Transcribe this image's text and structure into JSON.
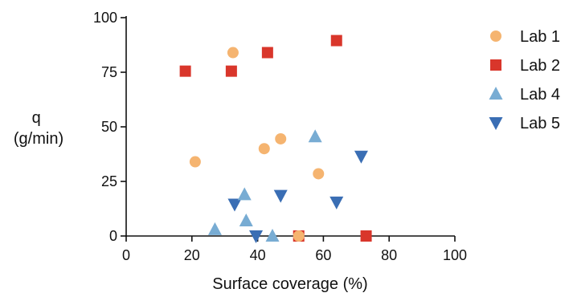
{
  "chart_data": {
    "type": "scatter",
    "xlabel": "Surface coverage (%)",
    "ylabel": [
      "q",
      "(g/min)"
    ],
    "xlim": [
      0,
      100
    ],
    "ylim": [
      0,
      100
    ],
    "xticks": [
      0,
      20,
      40,
      60,
      80,
      100
    ],
    "yticks": [
      0,
      25,
      50,
      75,
      100
    ],
    "grid": false,
    "legend_position": "right",
    "series": [
      {
        "name": "Lab 1",
        "marker": "circle",
        "color": "#F5B470",
        "x": [
          21,
          32.5,
          42,
          47,
          52.5,
          58.5
        ],
        "y": [
          34,
          84,
          40,
          44.5,
          0,
          28.5
        ]
      },
      {
        "name": "Lab 2",
        "marker": "square",
        "color": "#D9362B",
        "x": [
          18,
          32,
          43,
          64,
          52.5,
          73
        ],
        "y": [
          75.5,
          75.5,
          84,
          89.5,
          0,
          0
        ]
      },
      {
        "name": "Lab 4",
        "marker": "triangle-up",
        "color": "#78ACD3",
        "x": [
          27,
          36,
          36.5,
          44.5,
          57.5
        ],
        "y": [
          3,
          19,
          7,
          0,
          45.5
        ]
      },
      {
        "name": "Lab 5",
        "marker": "triangle-down",
        "color": "#3A6EB4",
        "x": [
          33,
          39.5,
          47,
          64,
          71.5
        ],
        "y": [
          14.5,
          0,
          18.5,
          15.5,
          36.5
        ]
      }
    ]
  }
}
